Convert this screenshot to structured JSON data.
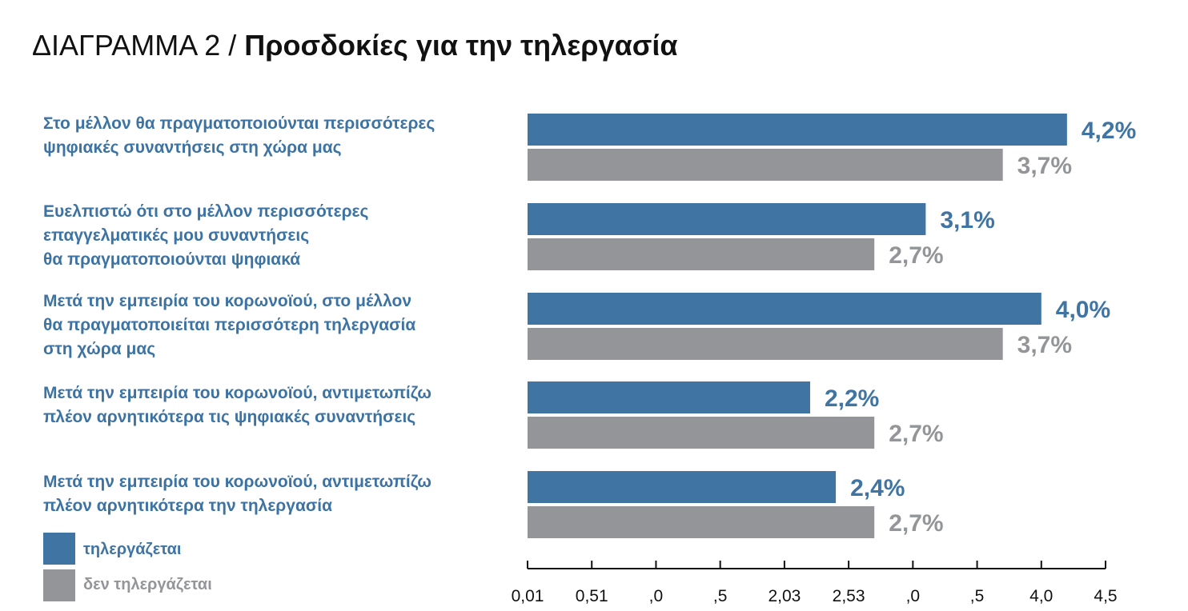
{
  "title": {
    "prefix": "ΔΙΑΓΡΑΜΜΑ 2 / ",
    "main": "Προσδοκίες για την τηλεργασία"
  },
  "colors": {
    "teleworking": "#3f74a3",
    "not_teleworking": "#939598",
    "axis": "#111111",
    "label_text": "#3c73a3"
  },
  "legend": [
    {
      "label": "τηλεργάζεται",
      "color": "#3f74a3"
    },
    {
      "label": "δεν τηλεργάζεται",
      "color": "#939598"
    }
  ],
  "chart_data": {
    "type": "bar",
    "orientation": "horizontal",
    "xlim": [
      0,
      4.5
    ],
    "x_tick_labels": [
      "0,01",
      "0,51",
      ",0",
      ",5",
      "2,03",
      "2,53",
      ",0",
      ",5",
      "4,0",
      "4,5"
    ],
    "categories": [
      [
        "Στο μέλλον θα πραγματοποιούνται περισσότερες",
        "ψηφιακές συναντήσεις στη χώρα μας"
      ],
      [
        "Ευελπιστώ ότι στο μέλλον περισσότερες",
        "επαγγελματικές μου συναντήσεις",
        "θα πραγματοποιούνται ψηφιακά"
      ],
      [
        "Μετά την εμπειρία του κορωνοϊού, στο μέλλον",
        "θα πραγματοποιείται περισσότερη τηλεργασία",
        "στη χώρα μας"
      ],
      [
        "Μετά την εμπειρία του κορωνοϊού, αντιμετωπίζω",
        "πλέον αρνητικότερα τις ψηφιακές συναντήσεις"
      ],
      [
        "Μετά την εμπειρία του κορωνοϊού, αντιμετωπίζω",
        "πλέον αρνητικότερα την τηλεργασία"
      ]
    ],
    "series": [
      {
        "name": "τηλεργάζεται",
        "color": "#3f74a3",
        "values": [
          4.2,
          3.1,
          4.0,
          2.2,
          2.4
        ],
        "data_labels": [
          "4,2%",
          "3,1%",
          "4,0%",
          "2,2%",
          "2,4%"
        ]
      },
      {
        "name": "δεν τηλεργάζεται",
        "color": "#939598",
        "values": [
          3.7,
          2.7,
          3.7,
          2.7,
          2.7
        ],
        "data_labels": [
          "3,7%",
          "2,7%",
          "3,7%",
          "2,7%",
          "2,7%"
        ]
      }
    ]
  }
}
